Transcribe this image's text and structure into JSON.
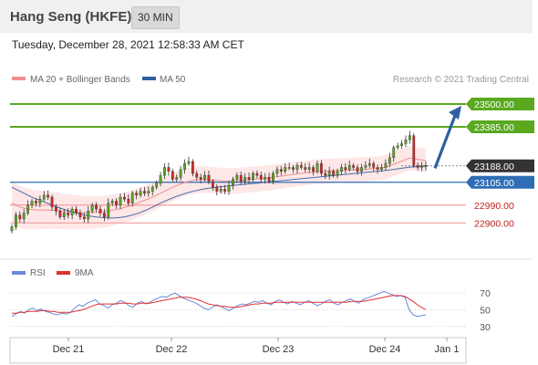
{
  "header": {
    "title": "Hang Seng (HKFE)",
    "timeframe": "30 MIN"
  },
  "timestamp": "Tuesday, December 28, 2021 12:58:33 AM CET",
  "legend": {
    "ma20_bb": "MA 20 + Bollinger Bands",
    "ma50": "MA 50",
    "credit": "Research © 2021 Trading Central"
  },
  "rsi_legend": {
    "rsi": "RSI",
    "ma9": "9MA"
  },
  "colors": {
    "green": "#5aa820",
    "blue": "#2f6db5",
    "red": "#e03030",
    "dark": "#333333",
    "candle_up": "#5aa820",
    "candle_down": "#d62828",
    "rsi_line": "#6a8ad8",
    "rsi_ma": "#e03030",
    "bb_fill": "#fde3e3"
  },
  "chart_data": [
    {
      "type": "candlestick",
      "ylim": [
        22800,
        23560
      ],
      "x_labels": [
        "Dec 21",
        "Dec 22",
        "Dec 23",
        "Dec 24",
        "Jan 1"
      ],
      "levels": [
        {
          "value": 23500,
          "label": "23500.00",
          "style": "green-solid"
        },
        {
          "value": 23385,
          "label": "23385.00",
          "style": "green-solid"
        },
        {
          "value": 23188,
          "label": "23188.00",
          "style": "dark-dotted"
        },
        {
          "value": 23105,
          "label": "23105.00",
          "style": "blue-solid"
        },
        {
          "value": 22990,
          "label": "22990.00",
          "style": "red-thin"
        },
        {
          "value": 22900,
          "label": "22900.00",
          "style": "red-thin"
        }
      ],
      "closes": [
        22880,
        22940,
        22920,
        22950,
        22990,
        23010,
        23000,
        23020,
        23040,
        23030,
        22980,
        22960,
        22930,
        22950,
        22940,
        22970,
        22950,
        22930,
        22920,
        22960,
        22990,
        22970,
        22950,
        22930,
        23000,
        23010,
        22990,
        23030,
        23020,
        23000,
        23050,
        23040,
        23060,
        23050,
        23060,
        23080,
        23100,
        23140,
        23180,
        23160,
        23120,
        23130,
        23170,
        23200,
        23210,
        23150,
        23130,
        23120,
        23140,
        23110,
        23080,
        23060,
        23070,
        23060,
        23090,
        23120,
        23140,
        23110,
        23130,
        23120,
        23150,
        23140,
        23120,
        23130,
        23110,
        23150,
        23170,
        23160,
        23180,
        23180,
        23170,
        23190,
        23180,
        23170,
        23180,
        23160,
        23200,
        23150,
        23140,
        23160,
        23140,
        23160,
        23180,
        23170,
        23190,
        23180,
        23160,
        23180,
        23190,
        23200,
        23180,
        23170,
        23180,
        23200,
        23230,
        23280,
        23290,
        23300,
        23320,
        23340,
        23190,
        23180,
        23190,
        23185
      ],
      "ma20": [
        23000,
        22990,
        22980,
        22975,
        22970,
        22968,
        22966,
        22965,
        22965,
        22966,
        22964,
        22962,
        22960,
        22958,
        22956,
        22955,
        22954,
        22953,
        22952,
        22952,
        22953,
        22954,
        22955,
        22957,
        22960,
        22964,
        22968,
        22972,
        22978,
        22984,
        22990,
        22998,
        23006,
        23014,
        23022,
        23030,
        23040,
        23050,
        23060,
        23070,
        23080,
        23088,
        23096,
        23104,
        23110,
        23114,
        23117,
        23118,
        23119,
        23118,
        23116,
        23114,
        23112,
        23111,
        23110,
        23111,
        23112,
        23114,
        23116,
        23118,
        23120,
        23122,
        23124,
        23126,
        23128,
        23130,
        23133,
        23136,
        23139,
        23142,
        23145,
        23148,
        23150,
        23152,
        23154,
        23156,
        23158,
        23160,
        23161,
        23162,
        23163,
        23164,
        23165,
        23166,
        23167,
        23168,
        23169,
        23170,
        23171,
        23172,
        23174,
        23176,
        23178,
        23182,
        23188,
        23196,
        23204,
        23212,
        23220,
        23228,
        23224,
        23220,
        23218,
        23215
      ],
      "ma50": [
        23080,
        23070,
        23060,
        23050,
        23040,
        23030,
        23022,
        23014,
        23006,
        22998,
        22990,
        22982,
        22975,
        22968,
        22962,
        22956,
        22950,
        22945,
        22940,
        22936,
        22933,
        22930,
        22928,
        22926,
        22925,
        22925,
        22926,
        22928,
        22931,
        22935,
        22940,
        22946,
        22953,
        22961,
        22970,
        22980,
        22990,
        23000,
        23009,
        23018,
        23026,
        23034,
        23041,
        23048,
        23054,
        23059,
        23064,
        23068,
        23072,
        23075,
        23078,
        23081,
        23083,
        23085,
        23087,
        23089,
        23091,
        23093,
        23095,
        23097,
        23099,
        23101,
        23103,
        23105,
        23107,
        23109,
        23111,
        23113,
        23115,
        23117,
        23119,
        23121,
        23123,
        23125,
        23127,
        23129,
        23131,
        23133,
        23135,
        23137,
        23139,
        23141,
        23143,
        23145,
        23147,
        23149,
        23151,
        23153,
        23155,
        23157,
        23159,
        23161,
        23163,
        23165,
        23167,
        23170,
        23173,
        23176,
        23179,
        23182,
        23183,
        23184,
        23185,
        23186
      ]
    },
    {
      "type": "line",
      "ylim": [
        20,
        80
      ],
      "y_ticks": [
        70,
        50,
        30
      ],
      "rsi": [
        42,
        45,
        48,
        46,
        50,
        52,
        49,
        51,
        48,
        47,
        45,
        44,
        46,
        45,
        47,
        52,
        56,
        54,
        58,
        60,
        62,
        57,
        55,
        52,
        56,
        58,
        61,
        59,
        55,
        53,
        58,
        60,
        57,
        59,
        62,
        64,
        66,
        65,
        68,
        70,
        67,
        64,
        62,
        60,
        58,
        55,
        52,
        50,
        53,
        56,
        54,
        51,
        49,
        52,
        55,
        57,
        56,
        58,
        60,
        59,
        61,
        58,
        56,
        60,
        62,
        59,
        57,
        60,
        58,
        56,
        59,
        61,
        58,
        55,
        57,
        60,
        62,
        58,
        56,
        59,
        61,
        63,
        60,
        58,
        62,
        64,
        66,
        68,
        70,
        72,
        70,
        68,
        66,
        67,
        65,
        50,
        44,
        42,
        43,
        44
      ],
      "ma9": [
        46,
        46,
        47,
        47,
        48,
        48,
        48,
        49,
        49,
        48,
        48,
        47,
        47,
        47,
        47,
        48,
        49,
        50,
        52,
        54,
        56,
        57,
        57,
        57,
        57,
        57,
        58,
        58,
        58,
        57,
        57,
        58,
        58,
        58,
        59,
        60,
        61,
        62,
        63,
        64,
        65,
        65,
        65,
        64,
        63,
        61,
        59,
        57,
        56,
        55,
        54,
        54,
        53,
        53,
        53,
        54,
        55,
        56,
        57,
        57,
        58,
        58,
        58,
        59,
        59,
        59,
        59,
        59,
        59,
        59,
        59,
        59,
        59,
        59,
        59,
        59,
        59,
        59,
        59,
        59,
        59,
        60,
        60,
        60,
        60,
        61,
        62,
        63,
        64,
        65,
        66,
        67,
        67,
        67,
        66,
        63,
        60,
        56,
        53,
        50
      ]
    }
  ]
}
